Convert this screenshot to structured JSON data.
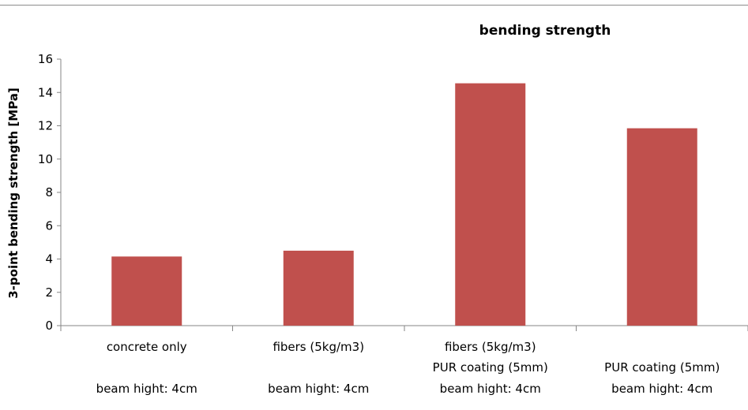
{
  "chart_data": {
    "type": "bar",
    "title": "bending strength",
    "ylabel": "3-point bending strength  [MPa]",
    "xlabel": "",
    "ylim": [
      0,
      16
    ],
    "yticks": [
      0,
      2,
      4,
      6,
      8,
      10,
      12,
      14,
      16
    ],
    "grid": false,
    "legend": "none",
    "bar_color": "#C0504D",
    "categories": [
      [
        "concrete only",
        "",
        "beam hight: 4cm"
      ],
      [
        "fibers (5kg/m3)",
        "",
        "beam hight: 4cm"
      ],
      [
        "fibers (5kg/m3)",
        "PUR coating (5mm)",
        "beam hight: 4cm"
      ],
      [
        "",
        "PUR coating (5mm)",
        "beam hight: 4cm"
      ]
    ],
    "values": [
      4.15,
      4.5,
      14.55,
      11.85
    ]
  }
}
